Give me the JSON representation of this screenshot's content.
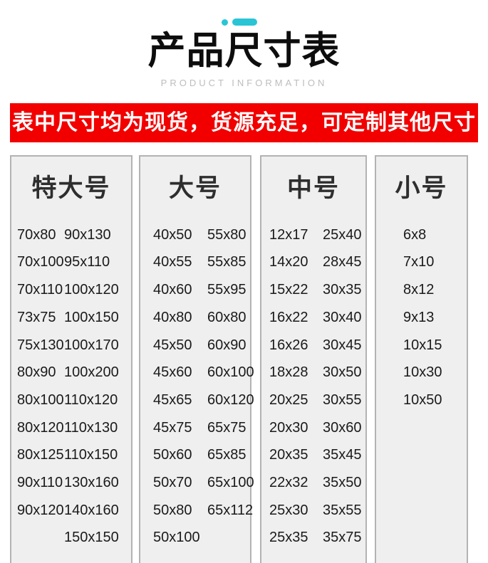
{
  "header": {
    "accent_color": "#29c5d6",
    "title": "产品尺寸表",
    "subtitle": "PRODUCT INFORMATION"
  },
  "banner": {
    "text": "表中尺寸均为现货，货源充足，可定制其他尺寸",
    "bg_color": "#f20000",
    "text_color": "#ffffff"
  },
  "size_table": {
    "card_bg": "#efefef",
    "card_border": "#b3b3b3",
    "text_color": "#1a1a1a",
    "columns": [
      {
        "title": "特大号",
        "col1": [
          "70x80",
          "70x100",
          "70x110",
          "73x75",
          "75x130",
          "80x90",
          "80x100",
          "80x120",
          "80x125",
          "90x110",
          "90x120",
          ""
        ],
        "col2": [
          "90x130",
          "95x110",
          "100x120",
          "100x150",
          "100x170",
          "100x200",
          "110x120",
          "110x130",
          "110x150",
          "130x160",
          "140x160",
          "150x150"
        ]
      },
      {
        "title": "大号",
        "col1": [
          "40x50",
          "40x55",
          "40x60",
          "40x80",
          "45x50",
          "45x60",
          "45x65",
          "45x75",
          "50x60",
          "50x70",
          "50x80",
          "50x100"
        ],
        "col2": [
          "55x80",
          "55x85",
          "55x95",
          "60x80",
          "60x90",
          "60x100",
          "60x120",
          "65x75",
          "65x85",
          "65x100",
          "65x112",
          ""
        ]
      },
      {
        "title": "中号",
        "col1": [
          "12x17",
          "14x20",
          "15x22",
          "16x22",
          "16x26",
          "18x28",
          "20x25",
          "20x30",
          "20x35",
          "22x32",
          "25x30",
          "25x35"
        ],
        "col2": [
          "25x40",
          "28x45",
          "30x35",
          "30x40",
          "30x45",
          "30x50",
          "30x55",
          "30x60",
          "35x45",
          "35x50",
          "35x55",
          "35x75"
        ]
      },
      {
        "title": "小号",
        "col1": [
          "6x8",
          "7x10",
          "8x12",
          "9x13",
          "10x15",
          "10x30",
          "10x50"
        ],
        "col2": []
      }
    ]
  }
}
